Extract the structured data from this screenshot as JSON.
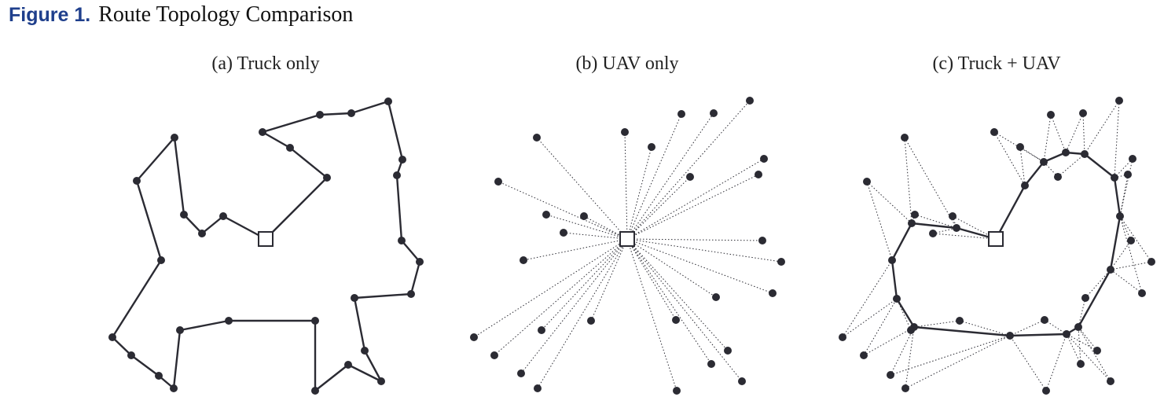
{
  "figure": {
    "label": "Figure 1.",
    "title": "Route Topology Comparison"
  },
  "colors": {
    "figure_label": "#1f3f8c",
    "route_line": "#2b2b33",
    "customer_node": "#2b2b33",
    "depot_fill": "#ffffff"
  },
  "legend_icons": {
    "customer": "filled-circle",
    "depot": "open-square"
  },
  "panels": [
    {
      "id": "a",
      "title": "(a) Truck only",
      "truck_route": "solid",
      "uav_links": "none"
    },
    {
      "id": "b",
      "title": "(b) UAV only",
      "truck_route": "none",
      "uav_links": "dotted"
    },
    {
      "id": "c",
      "title": "(c) Truck + UAV",
      "truck_route": "solid",
      "uav_links": "dotted"
    }
  ]
}
